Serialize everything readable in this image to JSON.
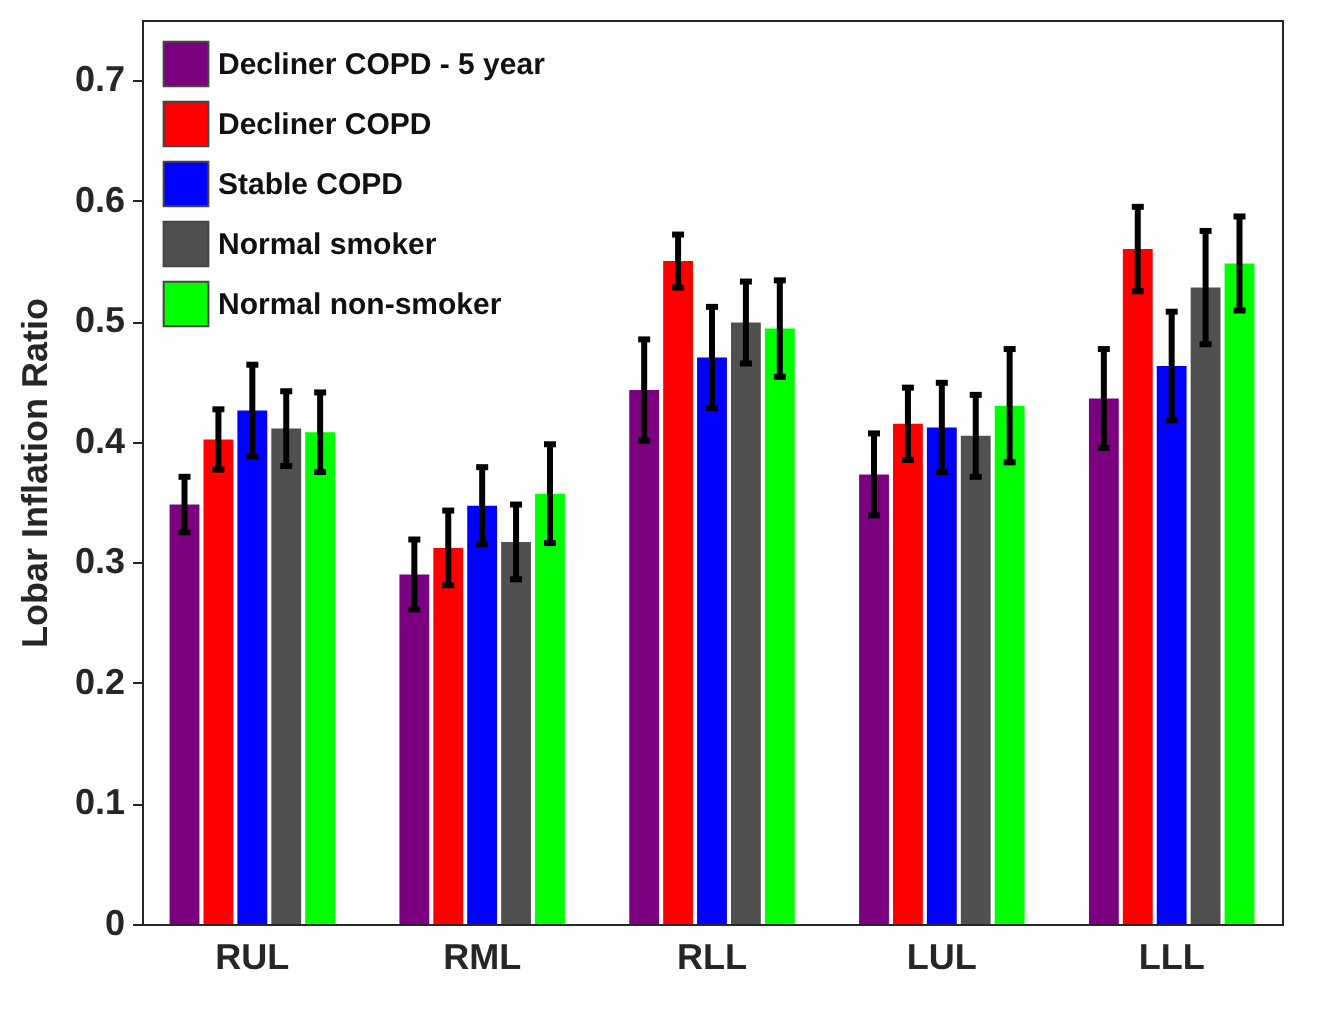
{
  "chart_data": {
    "type": "bar",
    "ylabel": "Lobar Inflation Ratio",
    "categories": [
      "RUL",
      "RML",
      "RLL",
      "LUL",
      "LLL"
    ],
    "series": [
      {
        "name": "Decliner COPD - 5 year",
        "color": "#7a0080",
        "values": [
          0.348,
          0.29,
          0.443,
          0.373,
          0.436
        ],
        "errors": [
          0.023,
          0.029,
          0.042,
          0.034,
          0.041
        ]
      },
      {
        "name": "Decliner COPD",
        "color": "#ff0000",
        "values": [
          0.402,
          0.312,
          0.55,
          0.415,
          0.56
        ],
        "errors": [
          0.025,
          0.031,
          0.022,
          0.03,
          0.035
        ]
      },
      {
        "name": "Stable COPD",
        "color": "#0000ff",
        "values": [
          0.426,
          0.347,
          0.47,
          0.412,
          0.463
        ],
        "errors": [
          0.038,
          0.032,
          0.042,
          0.037,
          0.045
        ]
      },
      {
        "name": "Normal smoker",
        "color": "#505050",
        "values": [
          0.411,
          0.317,
          0.499,
          0.405,
          0.528
        ],
        "errors": [
          0.031,
          0.031,
          0.034,
          0.034,
          0.047
        ]
      },
      {
        "name": "Normal non-smoker",
        "color": "#00ff00",
        "values": [
          0.408,
          0.357,
          0.494,
          0.43,
          0.548
        ],
        "errors": [
          0.033,
          0.041,
          0.04,
          0.047,
          0.039
        ]
      }
    ],
    "ylim": [
      0,
      0.75
    ],
    "yticks": [
      0,
      0.1,
      0.2,
      0.3,
      0.4,
      0.5,
      0.6,
      0.7
    ],
    "grid": false,
    "legend": "top left"
  }
}
